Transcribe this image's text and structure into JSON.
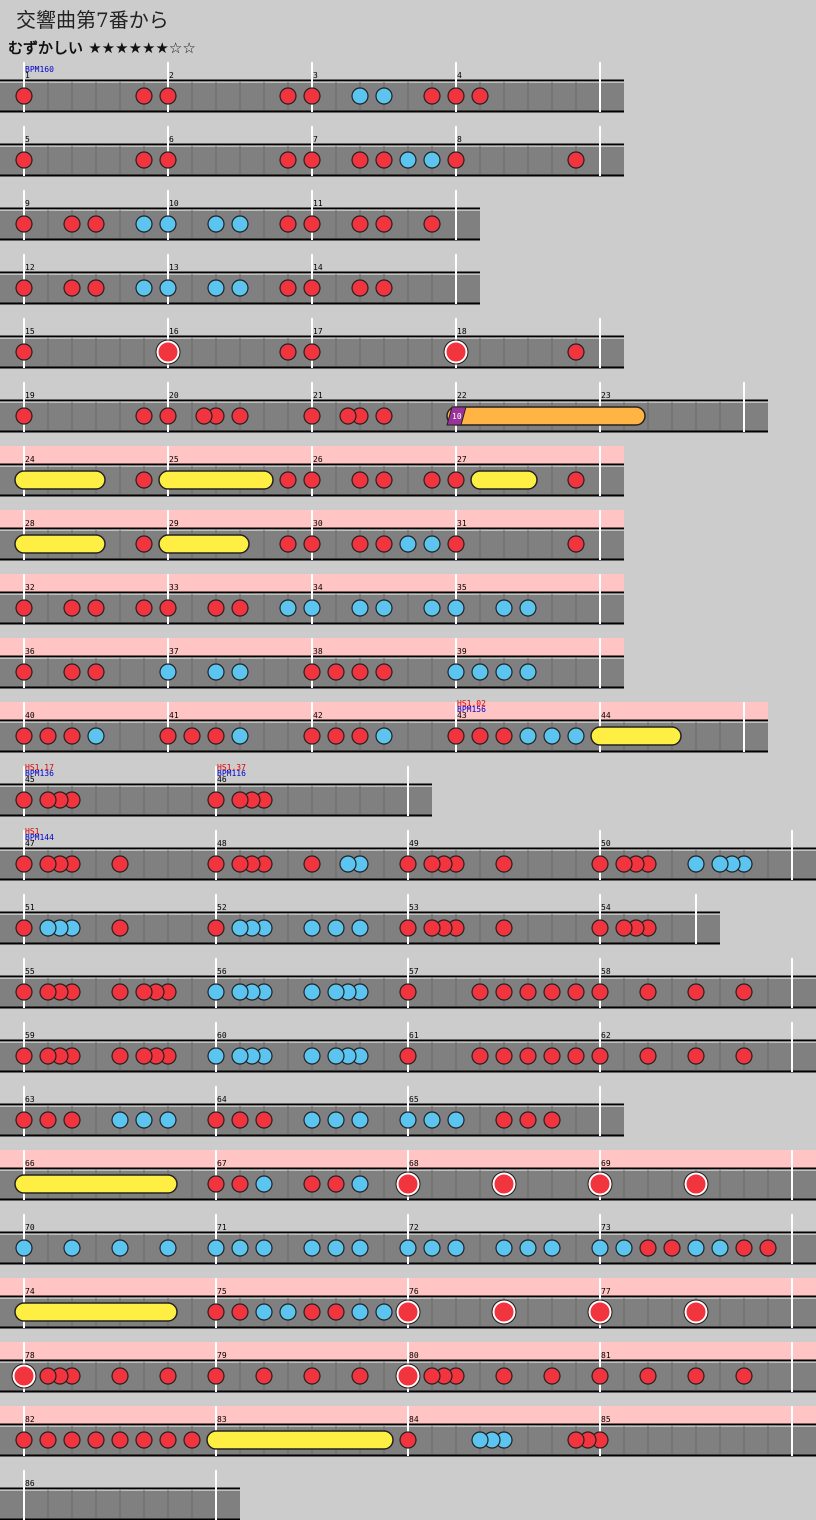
{
  "header": {
    "title": "交響曲第7番から",
    "difficulty": "むずかしい ★★★★★★☆☆"
  },
  "rows": [
    {
      "measures": [
        {
          "n": "1",
          "notes": "d.........d.",
          "bpm": "BPM160"
        },
        {
          "n": "2",
          "notes": "d.........d."
        },
        {
          "n": "3",
          "notes": "d...k.k...d."
        },
        {
          "n": "4",
          "notes": "d.d........."
        }
      ]
    },
    {
      "measures": [
        {
          "n": "5",
          "notes": "d.........d."
        },
        {
          "n": "6",
          "notes": "d.........d."
        },
        {
          "n": "7",
          "notes": "d...d.d.k.k."
        },
        {
          "n": "8",
          "notes": "d.........d."
        }
      ]
    },
    {
      "measures": [
        {
          "n": "9",
          "notes": "d...d.d...k."
        },
        {
          "n": "10",
          "notes": "k...k.k...d."
        },
        {
          "n": "11",
          "notes": "d...d.d...d."
        }
      ]
    },
    {
      "measures": [
        {
          "n": "12",
          "notes": "d...d.d...k."
        },
        {
          "n": "13",
          "notes": "k...k.k...d."
        },
        {
          "n": "14",
          "notes": "d...d.d....."
        }
      ]
    },
    {
      "measures": [
        {
          "n": "15",
          "notes": "d..........."
        },
        {
          "n": "16",
          "notes": "D.........d."
        },
        {
          "n": "17",
          "notes": "d..........."
        },
        {
          "n": "18",
          "notes": "D.........d."
        }
      ]
    },
    {
      "measures": [
        {
          "n": "19",
          "notes": "d.........d."
        },
        {
          "n": "20",
          "notes": "d..dd.d....."
        },
        {
          "n": "21",
          "notes": "d..dd.d....."
        },
        {
          "n": "22",
          "notes": "b===========",
          "balloon": "10"
        },
        {
          "n": "23",
          "notes": "====........"
        }
      ]
    },
    {
      "highlight": true,
      "measures": [
        {
          "n": "24",
          "notes": "r======...d."
        },
        {
          "n": "25",
          "notes": "r========.d."
        },
        {
          "n": "26",
          "notes": "d...d.d...d."
        },
        {
          "n": "27",
          "notes": "d.r====...d."
        }
      ]
    },
    {
      "highlight": true,
      "measures": [
        {
          "n": "28",
          "notes": "r======...d."
        },
        {
          "n": "29",
          "notes": "r======...d."
        },
        {
          "n": "30",
          "notes": "d...d.d.k.k."
        },
        {
          "n": "31",
          "notes": "d.........d."
        }
      ]
    },
    {
      "highlight": true,
      "measures": [
        {
          "n": "32",
          "notes": "d...d.d...d."
        },
        {
          "n": "33",
          "notes": "d...d.d...k."
        },
        {
          "n": "34",
          "notes": "k...k.k...k."
        },
        {
          "n": "35",
          "notes": "k...k.k....."
        }
      ]
    },
    {
      "highlight": true,
      "measures": [
        {
          "n": "36",
          "notes": "d...d.d....."
        },
        {
          "n": "37",
          "notes": "k...k.k....."
        },
        {
          "n": "38",
          "notes": "d.d.d.d....."
        },
        {
          "n": "39",
          "notes": "k.k.k.k....."
        }
      ]
    },
    {
      "highlight": true,
      "measures": [
        {
          "n": "40",
          "notes": "d.d.d.k....."
        },
        {
          "n": "41",
          "notes": "d.d.d.k....."
        },
        {
          "n": "42",
          "notes": "d.d.d.k....."
        },
        {
          "n": "43",
          "notes": "d.d.d.k.k.k.",
          "hs": "HS1.02",
          "bpm": "BPM156"
        },
        {
          "n": "44",
          "notes": "r======....."
        }
      ]
    },
    {
      "measures": [
        {
          "n": "45",
          "notes": "d.ddd...........",
          "hs": "HS1.17",
          "bpm": "BPM136"
        },
        {
          "n": "46",
          "notes": "d.ddd...........",
          "hs": "HS1.37",
          "bpm": "BPM116"
        }
      ]
    },
    {
      "measures": [
        {
          "n": "47",
          "notes": "d.ddd...d.......",
          "hs": "HS1",
          "bpm": "BPM144"
        },
        {
          "n": "48",
          "notes": "d.ddd...d..kk..."
        },
        {
          "n": "49",
          "notes": "d.ddd...d......."
        },
        {
          "n": "50",
          "notes": "d.ddd...k.kkk..."
        }
      ]
    },
    {
      "measures": [
        {
          "n": "51",
          "notes": "d.kkk...d......."
        },
        {
          "n": "52",
          "notes": "d.kkk...k.k.k..."
        },
        {
          "n": "53",
          "notes": "d.ddd...d......."
        },
        {
          "n": "54",
          "notes": "d.ddd..."
        }
      ]
    },
    {
      "measures": [
        {
          "n": "55",
          "notes": "d.ddd...d.ddd..."
        },
        {
          "n": "56",
          "notes": "k.kkk...k.kkk..."
        },
        {
          "n": "57",
          "notes": "d.....d.d.d.d.d."
        },
        {
          "n": "58",
          "notes": "d...d...d...d..."
        }
      ]
    },
    {
      "measures": [
        {
          "n": "59",
          "notes": "d.ddd...d.ddd..."
        },
        {
          "n": "60",
          "notes": "k.kkk...k.kkk..."
        },
        {
          "n": "61",
          "notes": "d.....d.d.d.d.d."
        },
        {
          "n": "62",
          "notes": "d...d...d...d..."
        }
      ]
    },
    {
      "measures": [
        {
          "n": "63",
          "notes": "d.d.d...k.k.k..."
        },
        {
          "n": "64",
          "notes": "d.d.d...k.k.k..."
        },
        {
          "n": "65",
          "notes": "k.k.k...d.d.d..."
        }
      ]
    },
    {
      "highlight": true,
      "measures": [
        {
          "n": "66",
          "notes": "r============..."
        },
        {
          "n": "67",
          "notes": "d.d.k...d.d.k..."
        },
        {
          "n": "68",
          "notes": "D.......D......."
        },
        {
          "n": "69",
          "notes": "D.......D......."
        }
      ]
    },
    {
      "measures": [
        {
          "n": "70",
          "notes": "k...k...k...k..."
        },
        {
          "n": "71",
          "notes": "k.k.k...k.k.k..."
        },
        {
          "n": "72",
          "notes": "k.k.k...k.k.k..."
        },
        {
          "n": "73",
          "notes": "k.k.d.d.k.k.d.d."
        }
      ]
    },
    {
      "highlight": true,
      "measures": [
        {
          "n": "74",
          "notes": "r============..."
        },
        {
          "n": "75",
          "notes": "d.d.k.k.d.d.k.k."
        },
        {
          "n": "76",
          "notes": "D.......D......."
        },
        {
          "n": "77",
          "notes": "D.......D......."
        }
      ]
    },
    {
      "highlight": true,
      "measures": [
        {
          "n": "78",
          "notes": "D.ddd...d...d..."
        },
        {
          "n": "79",
          "notes": "d...d...d...d..."
        },
        {
          "n": "80",
          "notes": "D.ddd...d...d..."
        },
        {
          "n": "81",
          "notes": "d...d...d...d..."
        }
      ]
    },
    {
      "highlight": true,
      "measures": [
        {
          "n": "82",
          "notes": "d.d.d.d.d.d.d.d."
        },
        {
          "n": "83",
          "notes": "r==============."
        },
        {
          "n": "84",
          "notes": "d.....kkk.....dd"
        },
        {
          "n": "85",
          "notes": "d..............."
        }
      ]
    },
    {
      "measures": [
        {
          "n": "86",
          "notes": "................"
        }
      ]
    }
  ]
}
